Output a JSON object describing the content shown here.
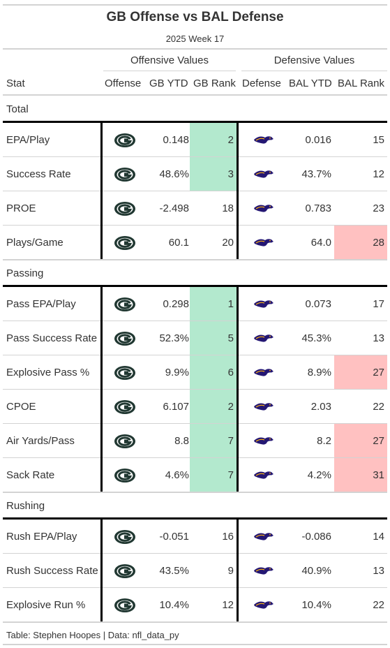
{
  "title": "GB Offense vs BAL Defense",
  "subtitle": "2025 Week 17",
  "spanners": {
    "offense": "Offensive Values",
    "defense": "Defensive Values"
  },
  "columns": {
    "stat": "Stat",
    "offense": "Offense",
    "gb_ytd": "GB YTD",
    "gb_rank": "GB Rank",
    "defense": "Defense",
    "bal_ytd": "BAL YTD",
    "bal_rank": "BAL Rank"
  },
  "colors": {
    "good_rank": "#b3e9ce",
    "bad_rank": "#ffc1c1",
    "packers_green": "#203731",
    "packers_gold": "#ffb612",
    "ravens_purple": "#241773"
  },
  "icons": {
    "offense": "packers-logo-icon",
    "defense": "ravens-logo-icon"
  },
  "source": "Table: Stephen Hoopes | Data: nfl_data_py",
  "chart_data": {
    "type": "table",
    "groups": [
      {
        "name": "Total",
        "rows": [
          {
            "stat": "EPA/Play",
            "gb_ytd": "0.148",
            "gb_rank": "2",
            "bal_ytd": "0.016",
            "bal_rank": "15",
            "gb_hl": "good",
            "bal_hl": ""
          },
          {
            "stat": "Success Rate",
            "gb_ytd": "48.6%",
            "gb_rank": "3",
            "bal_ytd": "43.7%",
            "bal_rank": "12",
            "gb_hl": "good",
            "bal_hl": ""
          },
          {
            "stat": "PROE",
            "gb_ytd": "-2.498",
            "gb_rank": "18",
            "bal_ytd": "0.783",
            "bal_rank": "23",
            "gb_hl": "",
            "bal_hl": ""
          },
          {
            "stat": "Plays/Game",
            "gb_ytd": "60.1",
            "gb_rank": "20",
            "bal_ytd": "64.0",
            "bal_rank": "28",
            "gb_hl": "",
            "bal_hl": "bad"
          }
        ]
      },
      {
        "name": "Passing",
        "rows": [
          {
            "stat": "Pass EPA/Play",
            "gb_ytd": "0.298",
            "gb_rank": "1",
            "bal_ytd": "0.073",
            "bal_rank": "17",
            "gb_hl": "good",
            "bal_hl": ""
          },
          {
            "stat": "Pass Success Rate",
            "gb_ytd": "52.3%",
            "gb_rank": "5",
            "bal_ytd": "45.3%",
            "bal_rank": "13",
            "gb_hl": "good",
            "bal_hl": ""
          },
          {
            "stat": "Explosive Pass %",
            "gb_ytd": "9.9%",
            "gb_rank": "6",
            "bal_ytd": "8.9%",
            "bal_rank": "27",
            "gb_hl": "good",
            "bal_hl": "bad"
          },
          {
            "stat": "CPOE",
            "gb_ytd": "6.107",
            "gb_rank": "2",
            "bal_ytd": "2.03",
            "bal_rank": "22",
            "gb_hl": "good",
            "bal_hl": ""
          },
          {
            "stat": "Air Yards/Pass",
            "gb_ytd": "8.8",
            "gb_rank": "7",
            "bal_ytd": "8.2",
            "bal_rank": "27",
            "gb_hl": "good",
            "bal_hl": "bad"
          },
          {
            "stat": "Sack Rate",
            "gb_ytd": "4.6%",
            "gb_rank": "7",
            "bal_ytd": "4.2%",
            "bal_rank": "31",
            "gb_hl": "good",
            "bal_hl": "bad"
          }
        ]
      },
      {
        "name": "Rushing",
        "rows": [
          {
            "stat": "Rush EPA/Play",
            "gb_ytd": "-0.051",
            "gb_rank": "16",
            "bal_ytd": "-0.086",
            "bal_rank": "14",
            "gb_hl": "",
            "bal_hl": ""
          },
          {
            "stat": "Rush Success Rate",
            "gb_ytd": "43.5%",
            "gb_rank": "9",
            "bal_ytd": "40.9%",
            "bal_rank": "13",
            "gb_hl": "",
            "bal_hl": ""
          },
          {
            "stat": "Explosive Run %",
            "gb_ytd": "10.4%",
            "gb_rank": "12",
            "bal_ytd": "10.4%",
            "bal_rank": "22",
            "gb_hl": "",
            "bal_hl": ""
          }
        ]
      }
    ]
  }
}
